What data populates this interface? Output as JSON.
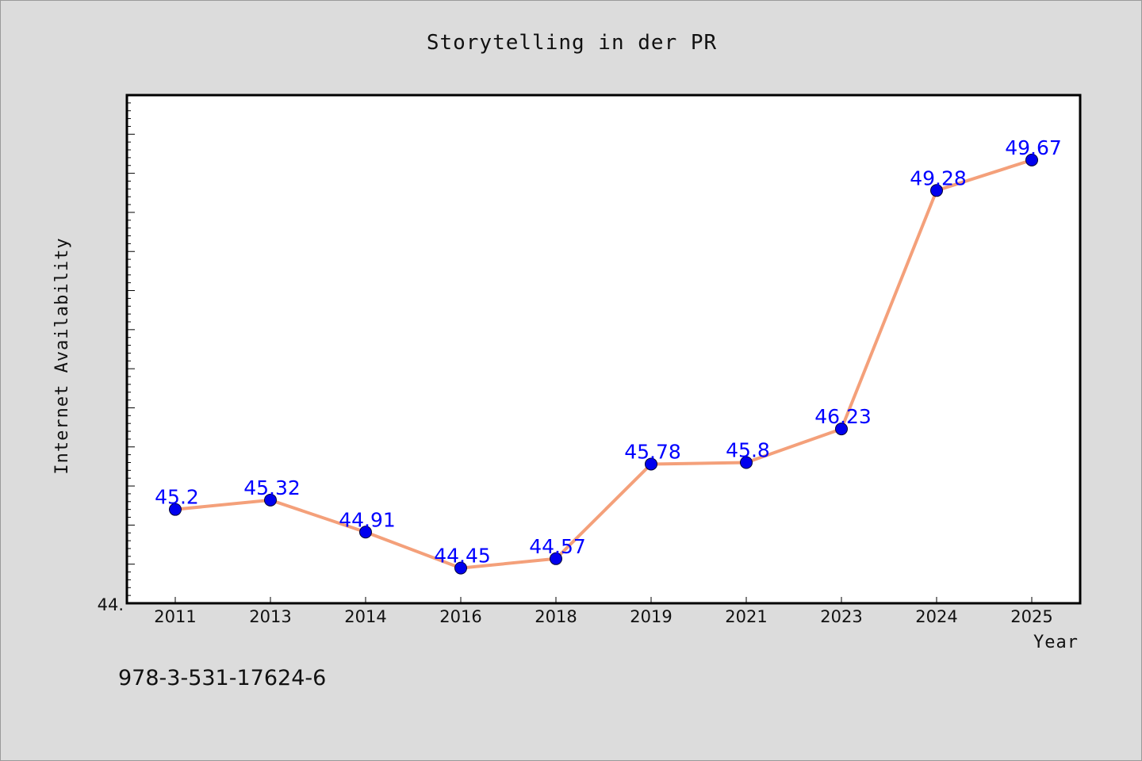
{
  "chart_data": {
    "type": "line",
    "title": "Storytelling in der PR",
    "xlabel": "Year",
    "ylabel": "Internet Availability",
    "categories": [
      "2011",
      "2013",
      "2014",
      "2016",
      "2018",
      "2019",
      "2021",
      "2023",
      "2024",
      "2025"
    ],
    "series": [
      {
        "values": [
          45.2,
          45.32,
          44.91,
          44.45,
          44.57,
          45.78,
          45.8,
          46.23,
          49.28,
          49.67
        ],
        "labels": [
          "45.2",
          "45.32",
          "44.91",
          "44.45",
          "44.57",
          "45.78",
          "45.8",
          "46.23",
          "49.28",
          "49.67"
        ],
        "line_color": "#f4a07a",
        "marker_color": "#0000ee"
      }
    ],
    "ylim": [
      44.0,
      50.5
    ],
    "y_tick_labels": [
      "44."
    ],
    "grid": false,
    "legend": "none",
    "label_color": "#0000ff"
  },
  "footnote": "978-3-531-17624-6"
}
